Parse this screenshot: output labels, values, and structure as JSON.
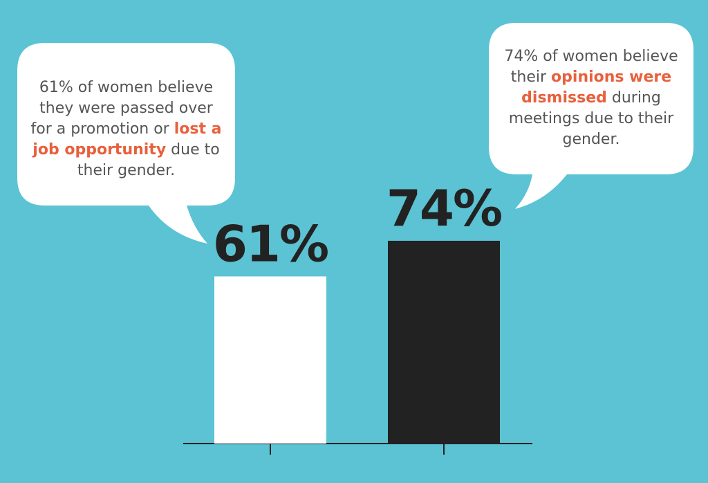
{
  "chart_data": {
    "type": "bar",
    "categories": [
      null,
      null
    ],
    "series": [
      {
        "colors": [
          "#ffffff",
          "#222222"
        ],
        "values": [
          61,
          74
        ],
        "value_labels": [
          "61%",
          "74%"
        ]
      }
    ],
    "ylim": [
      0,
      100
    ],
    "background": "#5bc3d3",
    "highlight_color": "#e8603c",
    "annotations": [
      {
        "parts": [
          {
            "text": "61% of women believe they were passed over for a promotion or ",
            "highlight": false
          },
          {
            "text": "lost a job opportunity",
            "highlight": true
          },
          {
            "text": " due to their gender.",
            "highlight": false
          }
        ]
      },
      {
        "parts": [
          {
            "text": "74% of women believe their ",
            "highlight": false
          },
          {
            "text": "opinions were dismissed",
            "highlight": true
          },
          {
            "text": " during meetings due to their gender.",
            "highlight": false
          }
        ]
      }
    ]
  }
}
